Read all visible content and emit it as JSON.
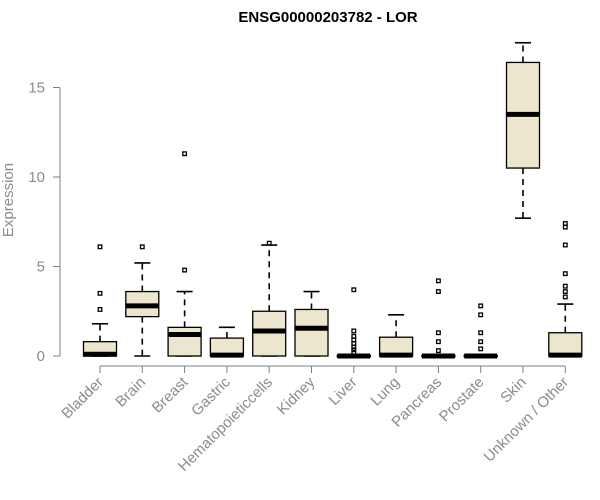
{
  "chart_data": {
    "type": "boxplot",
    "title": "ENSG00000203782 - LOR",
    "xlabel": "",
    "ylabel": "Expression",
    "ylim": [
      -0.6,
      17.2
    ],
    "yticks": [
      0,
      5,
      10,
      15
    ],
    "ytick_labels": [
      "0",
      "5",
      "10",
      "15"
    ],
    "grid": false,
    "box_color": "#ede6cf",
    "categories": [
      "Bladder",
      "Brain",
      "Breast",
      "Gastric",
      "Hematopoieticcells",
      "Kidney",
      "Liver",
      "Lung",
      "Pancreas",
      "Prostate",
      "Skin",
      "Unknown / Other"
    ],
    "boxes": [
      {
        "category": "Bladder",
        "whisker_low": 0,
        "q1": 0,
        "median": 0.1,
        "q3": 0.8,
        "whisker_high": 1.8,
        "outliers": [
          2.6,
          3.5,
          6.1
        ]
      },
      {
        "category": "Brain",
        "whisker_low": 0,
        "q1": 2.2,
        "median": 2.8,
        "q3": 3.6,
        "whisker_high": 5.2,
        "outliers": [
          6.1
        ]
      },
      {
        "category": "Breast",
        "whisker_low": 0,
        "q1": 0,
        "median": 1.2,
        "q3": 1.6,
        "whisker_high": 3.6,
        "outliers": [
          4.8,
          11.3
        ]
      },
      {
        "category": "Gastric",
        "whisker_low": 0,
        "q1": 0,
        "median": 0.05,
        "q3": 1.0,
        "whisker_high": 1.6,
        "outliers": []
      },
      {
        "category": "Hematopoieticcells",
        "whisker_low": 0,
        "q1": 0,
        "median": 1.4,
        "q3": 2.5,
        "whisker_high": 6.2,
        "outliers": [
          6.3
        ]
      },
      {
        "category": "Kidney",
        "whisker_low": 0,
        "q1": 0,
        "median": 1.55,
        "q3": 2.6,
        "whisker_high": 3.6,
        "outliers": []
      },
      {
        "category": "Liver",
        "whisker_low": 0,
        "q1": 0,
        "median": 0,
        "q3": 0.02,
        "whisker_high": 0.05,
        "outliers": [
          0.2,
          0.35,
          0.5,
          0.7,
          0.9,
          1.1,
          1.4,
          3.7
        ]
      },
      {
        "category": "Lung",
        "whisker_low": 0,
        "q1": 0,
        "median": 0.05,
        "q3": 1.05,
        "whisker_high": 2.3,
        "outliers": []
      },
      {
        "category": "Pancreas",
        "whisker_low": 0,
        "q1": 0,
        "median": 0,
        "q3": 0.02,
        "whisker_high": 0.05,
        "outliers": [
          0.3,
          0.8,
          1.3,
          3.6,
          4.2
        ]
      },
      {
        "category": "Prostate",
        "whisker_low": 0,
        "q1": 0,
        "median": 0,
        "q3": 0.02,
        "whisker_high": 0.05,
        "outliers": [
          0.4,
          0.8,
          1.3,
          2.3,
          2.8
        ]
      },
      {
        "category": "Skin",
        "whisker_low": 7.7,
        "q1": 10.5,
        "median": 13.5,
        "q3": 16.4,
        "whisker_high": 17.5,
        "outliers": []
      },
      {
        "category": "Unknown / Other",
        "whisker_low": 0,
        "q1": 0,
        "median": 0.05,
        "q3": 1.3,
        "whisker_high": 2.9,
        "outliers": [
          3.3,
          3.6,
          3.9,
          4.6,
          6.2,
          7.2,
          7.4
        ]
      }
    ]
  }
}
